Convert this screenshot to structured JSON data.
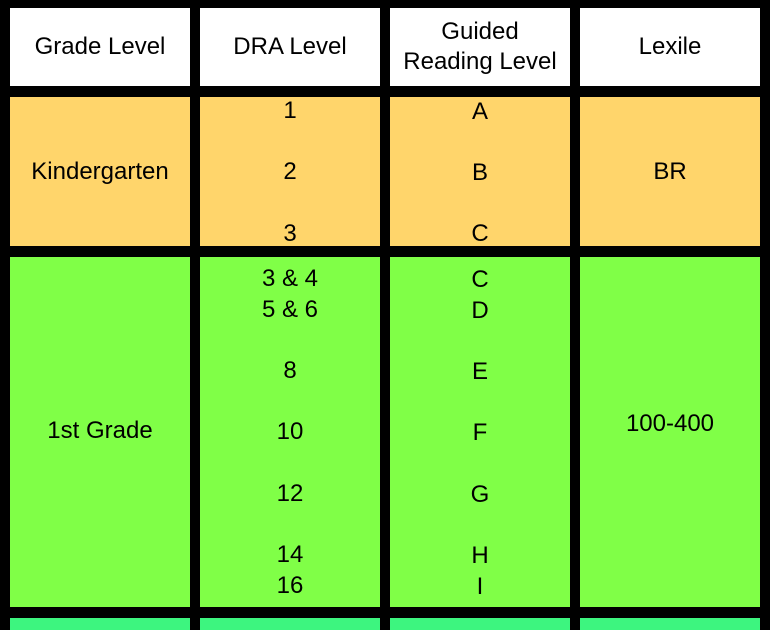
{
  "headers": {
    "grade": "Grade Level",
    "dra": "DRA Level",
    "guided_line1": "Guided",
    "guided_line2": "Reading Level",
    "lexile": "Lexile"
  },
  "kindergarten": {
    "grade": "Kindergarten",
    "dra": [
      "1",
      "2",
      "3"
    ],
    "guided": [
      "A",
      "B",
      "C"
    ],
    "lexile": "BR"
  },
  "first_grade": {
    "grade": "1st Grade",
    "dra": [
      "3 & 4",
      "5 & 6",
      "8",
      "10",
      "12",
      "14",
      "16"
    ],
    "guided": [
      "C",
      "D",
      "E",
      "F",
      "G",
      "H",
      "I"
    ],
    "lexile": "100-400"
  },
  "colors": {
    "kindergarten": "#ffd56b",
    "first_grade": "#80ff47",
    "next_row": "#3df57f"
  }
}
